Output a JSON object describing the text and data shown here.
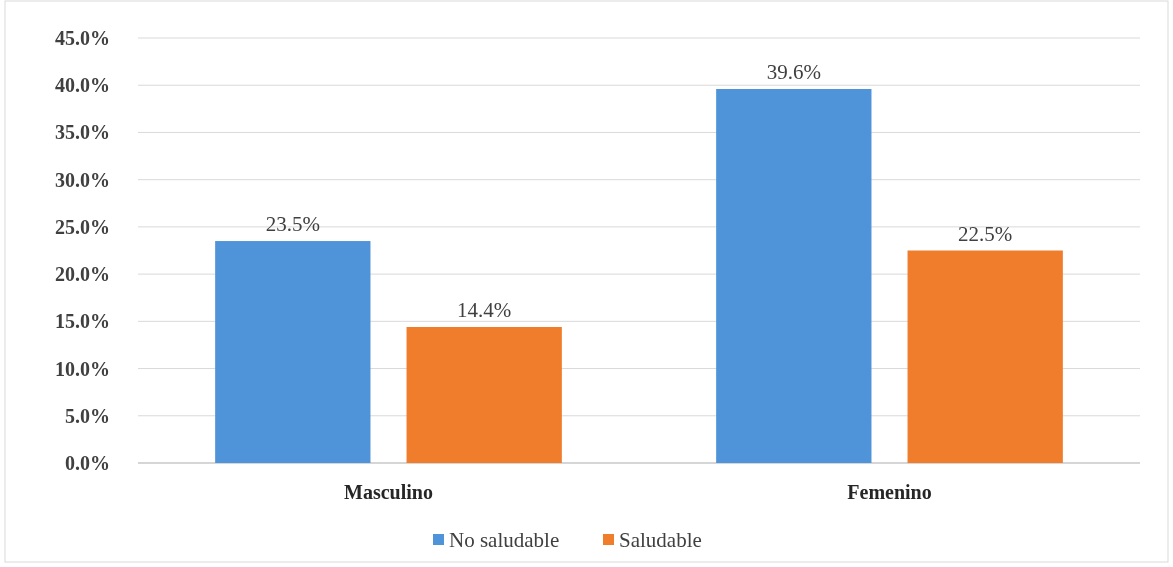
{
  "chart_data": {
    "type": "bar",
    "categories": [
      "Masculino",
      "Femenino"
    ],
    "series": [
      {
        "name": "No saludable",
        "color": "#4f93d8",
        "values": [
          23.5,
          39.6
        ],
        "value_labels": [
          "23.5%",
          "39.6%"
        ]
      },
      {
        "name": "Saludable",
        "color": "#ef7d2c",
        "values": [
          14.4,
          22.5
        ],
        "value_labels": [
          "14.4%",
          "22.5%"
        ]
      }
    ],
    "ylim": [
      0,
      45
    ],
    "yticks": [
      {
        "value": 0,
        "label": "0.0%"
      },
      {
        "value": 5,
        "label": "5.0%"
      },
      {
        "value": 10,
        "label": "10.0%"
      },
      {
        "value": 15,
        "label": "15.0%"
      },
      {
        "value": 20,
        "label": "20.0%"
      },
      {
        "value": 25,
        "label": "25.0%"
      },
      {
        "value": 30,
        "label": "30.0%"
      },
      {
        "value": 35,
        "label": "35.0%"
      },
      {
        "value": 40,
        "label": "40.0%"
      },
      {
        "value": 45,
        "label": "45.0%"
      }
    ],
    "grid": "y",
    "legend": "bottom"
  }
}
